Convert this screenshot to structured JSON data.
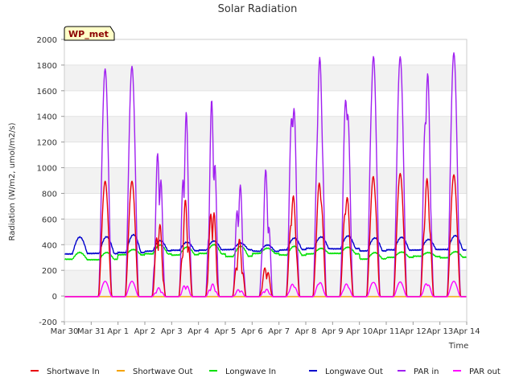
{
  "chart_data": {
    "type": "line",
    "title": "Solar Radiation",
    "xlabel": "Time",
    "ylabel": "Radiation (W/m2, umol/m2/s)",
    "ylim": [
      -200,
      2000
    ],
    "yticks": [
      -200,
      0,
      200,
      400,
      600,
      800,
      1000,
      1200,
      1400,
      1600,
      1800,
      2000
    ],
    "xlim": [
      "Mar 30",
      "Apr 14"
    ],
    "xticks": [
      "Mar 30",
      "Mar 31",
      "Apr 1",
      "Apr 2",
      "Apr 3",
      "Apr 4",
      "Apr 5",
      "Apr 6",
      "Apr 7",
      "Apr 8",
      "Apr 9",
      "Apr 10",
      "Apr 11",
      "Apr 12",
      "Apr 13",
      "Apr 14"
    ],
    "grid": "horizontal bands",
    "legend_position": "bottom",
    "annotation": "WP_met",
    "days": [
      "Mar 31",
      "Apr 1",
      "Apr 2",
      "Apr 3",
      "Apr 4",
      "Apr 5",
      "Apr 6",
      "Apr 7",
      "Apr 8",
      "Apr 9",
      "Apr 10",
      "Apr 11",
      "Apr 12",
      "Apr 13"
    ],
    "series": [
      {
        "name": "Shortwave In",
        "color": "#e8000b",
        "daily_peak": [
          900,
          900,
          620,
          760,
          780,
          450,
          250,
          800,
          910,
          810,
          940,
          960,
          920,
          950
        ]
      },
      {
        "name": "Shortwave Out",
        "color": "#f5a300",
        "daily_peak": [
          0,
          0,
          0,
          0,
          0,
          0,
          0,
          0,
          0,
          0,
          0,
          0,
          0,
          0
        ]
      },
      {
        "name": "Longwave In",
        "color": "#00e000",
        "daily_range": [
          [
            285,
            340
          ],
          [
            320,
            360
          ],
          [
            330,
            400
          ],
          [
            320,
            380
          ],
          [
            330,
            400
          ],
          [
            310,
            390
          ],
          [
            330,
            370
          ],
          [
            320,
            390
          ],
          [
            330,
            370
          ],
          [
            330,
            380
          ],
          [
            290,
            340
          ],
          [
            300,
            340
          ],
          [
            310,
            340
          ],
          [
            300,
            345
          ]
        ]
      },
      {
        "name": "Longwave Out",
        "color": "#0000cc",
        "daily_range": [
          [
            330,
            460
          ],
          [
            340,
            480
          ],
          [
            350,
            430
          ],
          [
            355,
            420
          ],
          [
            360,
            430
          ],
          [
            360,
            410
          ],
          [
            350,
            400
          ],
          [
            360,
            450
          ],
          [
            370,
            460
          ],
          [
            370,
            470
          ],
          [
            350,
            450
          ],
          [
            360,
            460
          ],
          [
            360,
            440
          ],
          [
            360,
            470
          ]
        ]
      },
      {
        "name": "PAR in",
        "color": "#a020f0",
        "daily_peak": [
          1775,
          1795,
          1230,
          1480,
          1600,
          940,
          1000,
          1640,
          1865,
          1670,
          1880,
          1870,
          1810,
          1900
        ]
      },
      {
        "name": "PAR out",
        "color": "#ff00ff",
        "daily_peak": [
          120,
          120,
          70,
          100,
          100,
          60,
          60,
          100,
          115,
          100,
          115,
          115,
          110,
          120
        ]
      }
    ]
  }
}
